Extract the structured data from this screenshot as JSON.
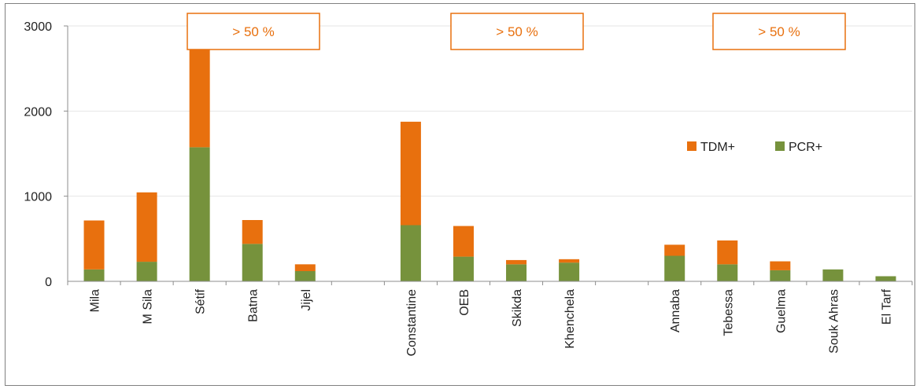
{
  "chart_data": {
    "type": "bar",
    "stacked": true,
    "categories": [
      "Mila",
      "M Sila",
      "Sétif",
      "Batna",
      "Jijel",
      "",
      "Constantine",
      "OEB",
      "Skikda",
      "Khenchela",
      "",
      "Annaba",
      "Tebessa",
      "Guelma",
      "Souk Ahras",
      "El Tarf"
    ],
    "series": [
      {
        "name": "PCR+",
        "color": "#76923C",
        "values": [
          140,
          230,
          1575,
          440,
          120,
          0,
          660,
          290,
          200,
          220,
          0,
          300,
          200,
          130,
          140,
          60
        ]
      },
      {
        "name": "TDM+",
        "color": "#E8700E",
        "values": [
          575,
          815,
          1210,
          280,
          80,
          0,
          1215,
          360,
          50,
          40,
          0,
          130,
          280,
          105,
          0,
          0
        ]
      }
    ],
    "ylim": [
      0,
      3000
    ],
    "yticks": [
      "0",
      "1000",
      "2000",
      "3000"
    ],
    "grid": true,
    "legend": {
      "placement": "right-middle",
      "order": [
        "TDM+",
        "PCR+"
      ]
    },
    "annotations": [
      "> 50 %",
      "> 50 %",
      "> 50 %"
    ]
  }
}
